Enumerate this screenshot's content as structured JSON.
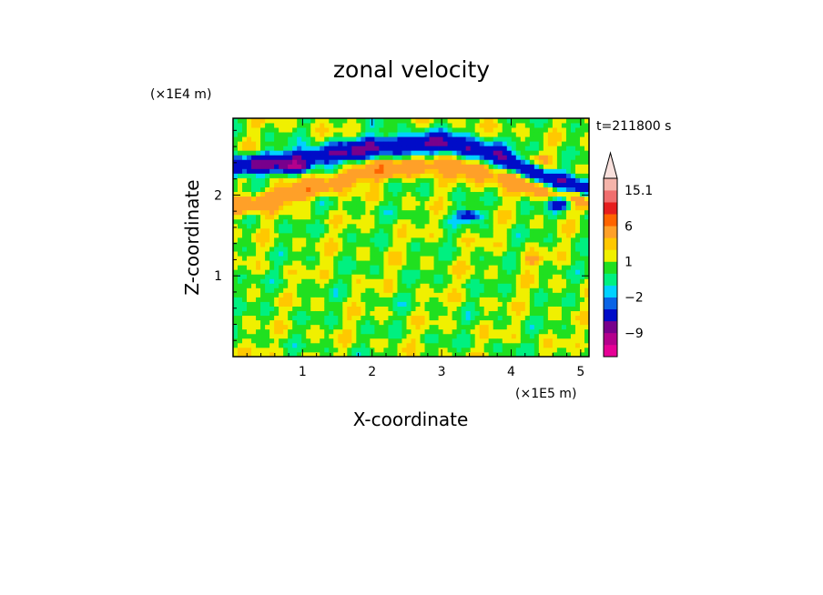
{
  "chart_data": {
    "type": "heatmap",
    "title": "zonal velocity",
    "xlabel": "X-coordinate",
    "ylabel": "Z-coordinate",
    "x_scale_label": "(×1E5 m)",
    "y_scale_label": "(×1E4 m)",
    "time_label": "t=211800 s",
    "xlim": [
      0,
      5.12
    ],
    "ylim": [
      0,
      2.95
    ],
    "x_ticks": [
      1,
      2,
      3,
      4,
      5
    ],
    "y_ticks": [
      1,
      2
    ],
    "colorbar": {
      "levels": [
        -15,
        -12,
        -9,
        -6,
        -3,
        -2,
        -1,
        0,
        1,
        2,
        3,
        6,
        9,
        12,
        15.1
      ],
      "tick_labels": [
        {
          "value": 15.1,
          "label": "15.1"
        },
        {
          "value": 6,
          "label": "6"
        },
        {
          "value": 1,
          "label": "1"
        },
        {
          "value": -2,
          "label": "−2"
        },
        {
          "value": -9,
          "label": "−9"
        }
      ],
      "colors": [
        "#e60096",
        "#b4008c",
        "#78008c",
        "#000cc8",
        "#0a64e6",
        "#00d2ff",
        "#00f080",
        "#20e020",
        "#f0f000",
        "#ffc800",
        "#ffa028",
        "#ff6400",
        "#e61e1e",
        "#f06e6e",
        "#f5b4aa"
      ],
      "extend": "max"
    },
    "field_features": [
      {
        "kind": "jet",
        "sign": -1,
        "x": [
          0.0,
          1.0,
          2.0,
          3.0,
          3.8,
          4.5,
          5.12
        ],
        "z": [
          2.35,
          2.45,
          2.6,
          2.65,
          2.5,
          2.2,
          2.05
        ],
        "peak": -7,
        "width": 0.12
      },
      {
        "kind": "jet",
        "sign": 1,
        "x": [
          0.0,
          1.0,
          2.0,
          3.0,
          4.0,
          5.12
        ],
        "z": [
          1.85,
          2.05,
          2.3,
          2.4,
          2.2,
          1.95
        ],
        "peak": 4,
        "width": 0.12
      },
      {
        "kind": "blob",
        "x": 4.4,
        "z": 2.45,
        "value": 4
      },
      {
        "kind": "blob",
        "x": 4.7,
        "z": 1.9,
        "value": -10
      },
      {
        "kind": "blob",
        "x": 3.4,
        "z": 1.75,
        "value": -10
      },
      {
        "kind": "blob",
        "x": 0.9,
        "z": 2.35,
        "value": -10
      },
      {
        "kind": "blob",
        "x": 4.3,
        "z": 1.2,
        "value": 4
      },
      {
        "kind": "region",
        "x": [
          0.5,
          3.0
        ],
        "z": [
          0.3,
          1.5
        ],
        "value": 0
      }
    ]
  }
}
